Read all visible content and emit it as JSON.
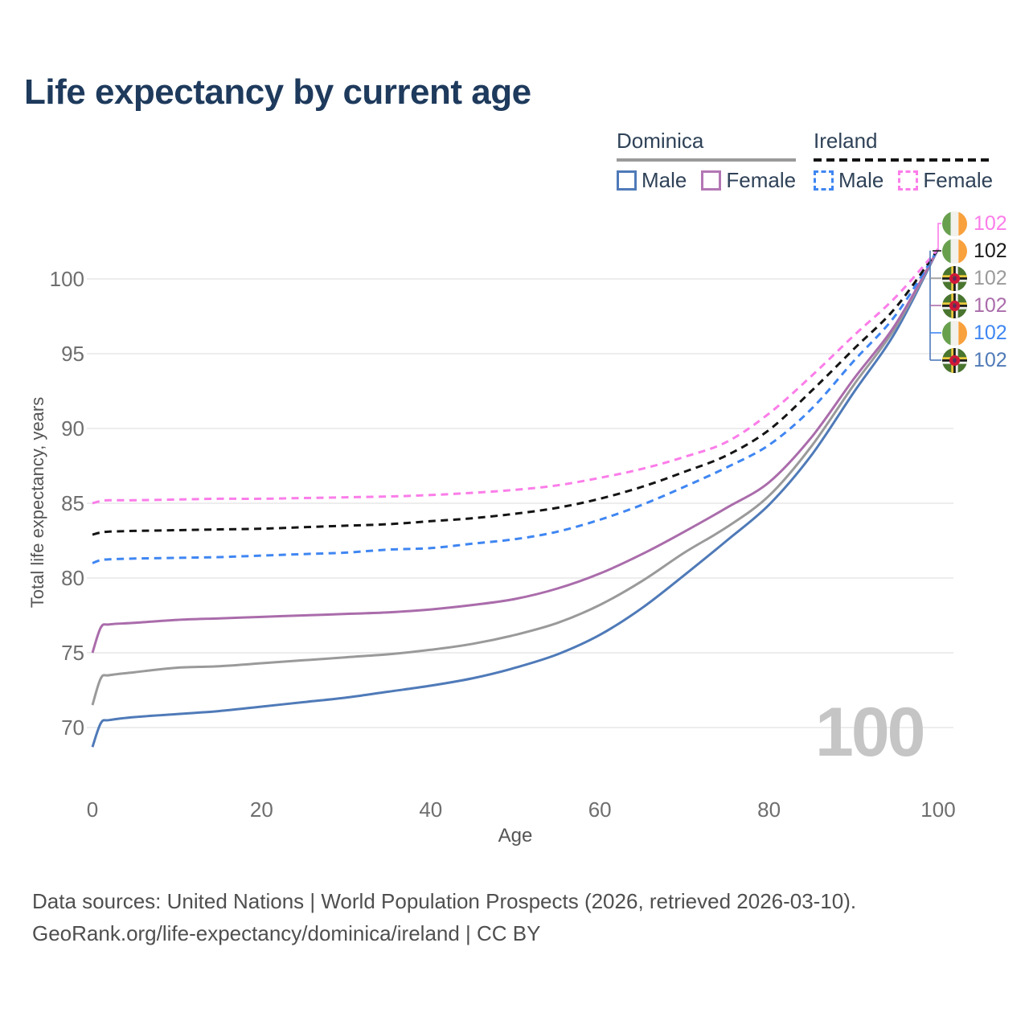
{
  "title": "Life expectancy by current age",
  "legend": {
    "groups": [
      {
        "label": "Dominica",
        "line_style": "solid",
        "underline_color": "#9a9a9a",
        "items": [
          {
            "label": "Male",
            "color": "#4f7ab8",
            "dashed": false
          },
          {
            "label": "Female",
            "color": "#b377b4",
            "dashed": false
          }
        ]
      },
      {
        "label": "Ireland",
        "line_style": "dashed",
        "underline_color": "#141414",
        "items": [
          {
            "label": "Male",
            "color": "#3f86f2",
            "dashed": true
          },
          {
            "label": "Female",
            "color": "#fb7de9",
            "dashed": true
          }
        ]
      }
    ]
  },
  "yaxis": {
    "title": "Total life expectancy, years",
    "ticks": [
      70,
      75,
      80,
      85,
      90,
      95,
      100
    ]
  },
  "xaxis": {
    "title": "Age",
    "ticks": [
      0,
      20,
      40,
      60,
      80,
      100
    ]
  },
  "end_labels": [
    {
      "value": "102",
      "series": "Ireland Female",
      "flag": "ireland",
      "color": "#fb7de9"
    },
    {
      "value": "102",
      "series": "Ireland",
      "flag": "ireland",
      "color": "#1a1a1a"
    },
    {
      "value": "102",
      "series": "Dominica",
      "flag": "dominica",
      "color": "#9a9a9a"
    },
    {
      "value": "102",
      "series": "Dominica Female",
      "flag": "dominica",
      "color": "#aa6cab"
    },
    {
      "value": "102",
      "series": "Ireland Male",
      "flag": "ireland",
      "color": "#3f86f2"
    },
    {
      "value": "102",
      "series": "Dominica Male",
      "flag": "dominica",
      "color": "#4f7ab8"
    }
  ],
  "watermark_age": "100",
  "footer": {
    "line1": "Data sources: United Nations | World Population Prospects (2026, retrieved 2026-03-10).",
    "line2": "GeoRank.org/life-expectancy/dominica/ireland | CC BY"
  },
  "chart_data": {
    "type": "line",
    "title": "Life expectancy by current age",
    "xlabel": "Age",
    "ylabel": "Total life expectancy, years",
    "xlim": [
      0,
      100
    ],
    "ylim": [
      70,
      100
    ],
    "grid": "horizontal-only",
    "legend_position": "top-right",
    "x": [
      0,
      1,
      2,
      5,
      10,
      15,
      20,
      25,
      30,
      35,
      40,
      45,
      50,
      55,
      60,
      65,
      70,
      75,
      80,
      85,
      90,
      95,
      100
    ],
    "series": [
      {
        "name": "Dominica Male",
        "country": "Dominica",
        "sex": "male",
        "color": "#4f7ab8",
        "dash": false,
        "values": [
          68.7,
          70.3,
          70.5,
          70.7,
          70.9,
          71.1,
          71.4,
          71.7,
          72.0,
          72.4,
          72.8,
          73.3,
          74.0,
          74.9,
          76.2,
          78.0,
          80.2,
          82.5,
          84.9,
          88.2,
          92.4,
          96.5,
          102.0
        ]
      },
      {
        "name": "Dominica",
        "country": "Dominica",
        "sex": "both",
        "color": "#9a9a9a",
        "dash": false,
        "values": [
          71.5,
          73.3,
          73.5,
          73.7,
          74.0,
          74.1,
          74.3,
          74.5,
          74.7,
          74.9,
          75.2,
          75.6,
          76.2,
          77.0,
          78.2,
          79.8,
          81.7,
          83.4,
          85.5,
          88.8,
          92.9,
          96.8,
          102.0
        ]
      },
      {
        "name": "Dominica Female",
        "country": "Dominica",
        "sex": "female",
        "color": "#aa6cab",
        "dash": false,
        "values": [
          75.0,
          76.7,
          76.9,
          77.0,
          77.2,
          77.3,
          77.4,
          77.5,
          77.6,
          77.7,
          77.9,
          78.2,
          78.6,
          79.3,
          80.3,
          81.6,
          83.1,
          84.7,
          86.4,
          89.4,
          93.3,
          97.0,
          102.0
        ]
      },
      {
        "name": "Ireland Male",
        "country": "Ireland",
        "sex": "male",
        "color": "#3f86f2",
        "dash": true,
        "values": [
          81.0,
          81.2,
          81.25,
          81.3,
          81.35,
          81.4,
          81.5,
          81.6,
          81.7,
          81.9,
          82.0,
          82.3,
          82.6,
          83.1,
          83.9,
          84.9,
          86.1,
          87.4,
          88.9,
          91.3,
          94.5,
          97.6,
          102.0
        ]
      },
      {
        "name": "Ireland",
        "country": "Ireland",
        "sex": "both",
        "color": "#141414",
        "dash": true,
        "values": [
          82.9,
          83.05,
          83.1,
          83.15,
          83.2,
          83.25,
          83.3,
          83.4,
          83.5,
          83.6,
          83.8,
          84.0,
          84.3,
          84.7,
          85.3,
          86.1,
          87.1,
          88.2,
          89.9,
          92.5,
          95.3,
          98.1,
          102.0
        ]
      },
      {
        "name": "Ireland Female",
        "country": "Ireland",
        "sex": "female",
        "color": "#fb7de9",
        "dash": true,
        "values": [
          85.0,
          85.15,
          85.2,
          85.2,
          85.25,
          85.3,
          85.3,
          85.35,
          85.4,
          85.45,
          85.55,
          85.7,
          85.9,
          86.2,
          86.7,
          87.3,
          88.1,
          89.1,
          91.0,
          93.5,
          96.2,
          98.8,
          102.0
        ]
      }
    ],
    "end_value_label": 102
  }
}
